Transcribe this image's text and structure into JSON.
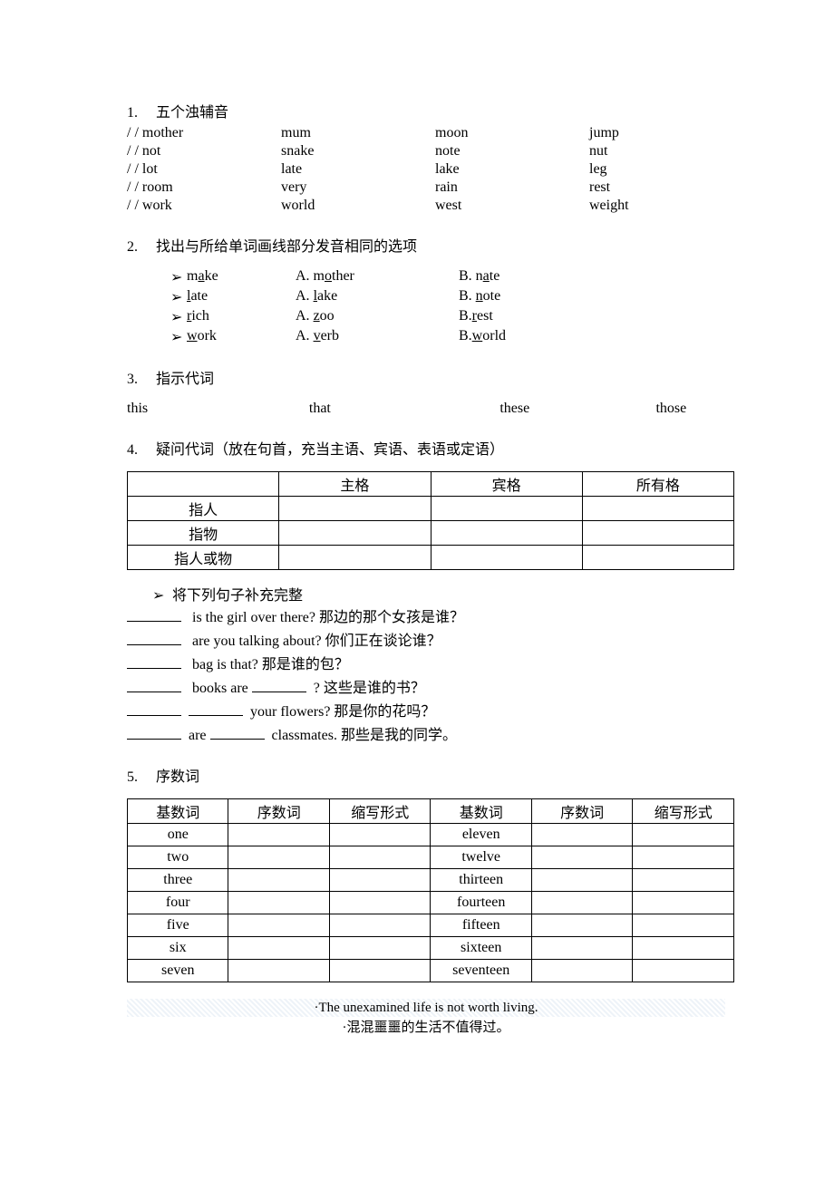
{
  "s1": {
    "num": "1.",
    "title": "五个浊辅音",
    "rows": [
      {
        "c1": "/       / mother",
        "c2": "mum",
        "c3": "moon",
        "c4": "jump"
      },
      {
        "c1": "/       / not",
        "c2": "snake",
        "c3": "note",
        "c4": "nut"
      },
      {
        "c1": "/       / lot",
        "c2": "late",
        "c3": "lake",
        "c4": "leg"
      },
      {
        "c1": "/       / room",
        "c2": "very",
        "c3": "rain",
        "c4": "rest"
      },
      {
        "c1": "/       / work",
        "c2": "world",
        "c3": "west",
        "c4": "weight"
      }
    ]
  },
  "s2": {
    "num": "2.",
    "title": "找出与所给单词画线部分发音相同的选项",
    "rows": [
      {
        "bullet": "➢",
        "w_pre": "m",
        "w_u": "a",
        "w_post": "ke",
        "a_pre": "A. m",
        "a_u": "o",
        "a_post": "ther",
        "b_pre": "B. n",
        "b_u": "a",
        "b_post": "te"
      },
      {
        "bullet": "➢",
        "w_pre": "",
        "w_u": "l",
        "w_post": "ate",
        "a_pre": "A. ",
        "a_u": "l",
        "a_post": "ake",
        "b_pre": "B. ",
        "b_u": "n",
        "b_post": "ote"
      },
      {
        "bullet": "➢",
        "w_pre": "",
        "w_u": "r",
        "w_post": "ich",
        "a_pre": "A. ",
        "a_u": "z",
        "a_post": "oo",
        "b_pre": "B.",
        "b_u": "r",
        "b_post": "est"
      },
      {
        "bullet": "➢",
        "w_pre": "",
        "w_u": "w",
        "w_post": "ork",
        "a_pre": "A. ",
        "a_u": "v",
        "a_post": "erb",
        "b_pre": "B.",
        "b_u": "w",
        "b_post": "orld"
      }
    ]
  },
  "s3": {
    "num": "3.",
    "title": "指示代词",
    "row": {
      "d1": "this",
      "d2": "that",
      "d3": "these",
      "d4": "those"
    }
  },
  "s4": {
    "num": "4.",
    "title": "疑问代词（放在句首，充当主语、宾语、表语或定语）",
    "headers": [
      "",
      "主格",
      "宾格",
      "所有格"
    ],
    "rows": [
      "指人",
      "指物",
      "指人或物"
    ]
  },
  "fill": {
    "bullet": "➢",
    "title": "将下列句子补充完整",
    "l1a": "is the girl over there?   那边的那个女孩是谁？",
    "l2a": "are you talking about?   你们正在谈论谁？",
    "l3a": "bag is that?   那是谁的包？",
    "l4a": "books are",
    "l4b": "?   这些是谁的书？",
    "l5a": "your flowers?   那是你的花吗？",
    "l6a": "are",
    "l6b": "classmates.   那些是我的同学。"
  },
  "s5": {
    "num": "5.",
    "title": "序数词",
    "headers": [
      "基数词",
      "序数词",
      "缩写形式",
      "基数词",
      "序数词",
      "缩写形式"
    ],
    "rows": [
      [
        "one",
        "",
        "",
        "eleven",
        "",
        ""
      ],
      [
        "two",
        "",
        "",
        "twelve",
        "",
        ""
      ],
      [
        "three",
        "",
        "",
        "thirteen",
        "",
        ""
      ],
      [
        "four",
        "",
        "",
        "fourteen",
        "",
        ""
      ],
      [
        "five",
        "",
        "",
        "fifteen",
        "",
        ""
      ],
      [
        "six",
        "",
        "",
        "sixteen",
        "",
        ""
      ],
      [
        "seven",
        "",
        "",
        "seventeen",
        "",
        ""
      ]
    ]
  },
  "footer": {
    "line1": "·The unexamined life is not worth living.",
    "line2": "·混混噩噩的生活不值得过。"
  }
}
